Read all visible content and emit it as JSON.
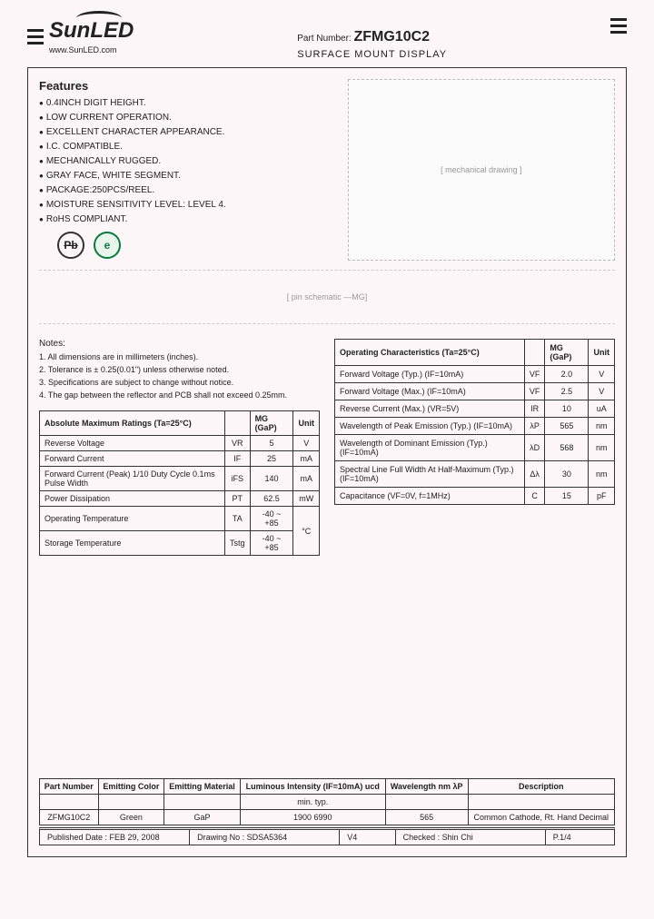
{
  "header": {
    "logo_text": "SunLED",
    "url": "www.SunLED.com",
    "part_label": "Part Number:",
    "part_number": "ZFMG10C2",
    "subtitle": "SURFACE MOUNT DISPLAY"
  },
  "features": {
    "title": "Features",
    "items": [
      "0.4INCH DIGIT HEIGHT.",
      "LOW CURRENT OPERATION.",
      "EXCELLENT CHARACTER APPEARANCE.",
      "I.C. COMPATIBLE.",
      "MECHANICALLY RUGGED.",
      "GRAY FACE, WHITE SEGMENT.",
      "PACKAGE:250PCS/REEL.",
      "MOISTURE SENSITIVITY LEVEL: LEVEL 4.",
      "RoHS COMPLIANT."
    ],
    "badge_pb": "Pb",
    "badge_e": "e"
  },
  "diagram_label": "MG",
  "notes": {
    "title": "Notes:",
    "items": [
      "All dimensions are in millimeters (inches).",
      "Tolerance is ± 0.25(0.01\") unless otherwise noted.",
      "Specifications are subject to change without notice.",
      "The gap between the reflector and PCB shall not exceed 0.25mm."
    ]
  },
  "abs_max": {
    "title": "Absolute Maximum Ratings (Ta=25°C)",
    "col_gap": "MG (GaP)",
    "col_unit": "Unit",
    "rows": [
      {
        "param": "Reverse Voltage",
        "sym": "VR",
        "val": "5",
        "unit": "V"
      },
      {
        "param": "Forward Current",
        "sym": "IF",
        "val": "25",
        "unit": "mA"
      },
      {
        "param": "Forward Current (Peak) 1/10 Duty Cycle 0.1ms Pulse Width",
        "sym": "iFS",
        "val": "140",
        "unit": "mA"
      },
      {
        "param": "Power Dissipation",
        "sym": "PT",
        "val": "62.5",
        "unit": "mW"
      },
      {
        "param": "Operating Temperature",
        "sym": "TA",
        "val": "-40 ~ +85",
        "unit": "°C"
      },
      {
        "param": "Storage Temperature",
        "sym": "Tstg",
        "val": "-40 ~ +85",
        "unit": "°C"
      }
    ]
  },
  "op_char": {
    "title": "Operating Characteristics (Ta=25°C)",
    "col_gap": "MG (GaP)",
    "col_unit": "Unit",
    "rows": [
      {
        "param": "Forward Voltage (Typ.) (IF=10mA)",
        "sym": "VF",
        "val": "2.0",
        "unit": "V"
      },
      {
        "param": "Forward Voltage (Max.) (IF=10mA)",
        "sym": "VF",
        "val": "2.5",
        "unit": "V"
      },
      {
        "param": "Reverse Current (Max.) (VR=5V)",
        "sym": "IR",
        "val": "10",
        "unit": "uA"
      },
      {
        "param": "Wavelength of Peak Emission (Typ.) (IF=10mA)",
        "sym": "λP",
        "val": "565",
        "unit": "nm"
      },
      {
        "param": "Wavelength of Dominant Emission (Typ.) (IF=10mA)",
        "sym": "λD",
        "val": "568",
        "unit": "nm"
      },
      {
        "param": "Spectral Line Full Width At Half-Maximum (Typ.) (IF=10mA)",
        "sym": "Δλ",
        "val": "30",
        "unit": "nm"
      },
      {
        "param": "Capacitance (VF=0V, f=1MHz)",
        "sym": "C",
        "val": "15",
        "unit": "pF"
      }
    ]
  },
  "bottom": {
    "headers": [
      "Part Number",
      "Emitting Color",
      "Emitting Material",
      "Luminous Intensity (IF=10mA) ucd",
      "Wavelength nm λP",
      "Description"
    ],
    "sub": [
      "",
      "",
      "",
      "min.        typ.",
      "",
      ""
    ],
    "row": [
      "ZFMG10C2",
      "Green",
      "GaP",
      "1900        6990",
      "565",
      "Common Cathode, Rt. Hand Decimal"
    ]
  },
  "footer": {
    "pub": "Published Date : FEB  29, 2008",
    "drawing": "Drawing No : SDSA5364",
    "ver": "V4",
    "checked": "Checked : Shin Chi",
    "page": "P.1/4"
  }
}
